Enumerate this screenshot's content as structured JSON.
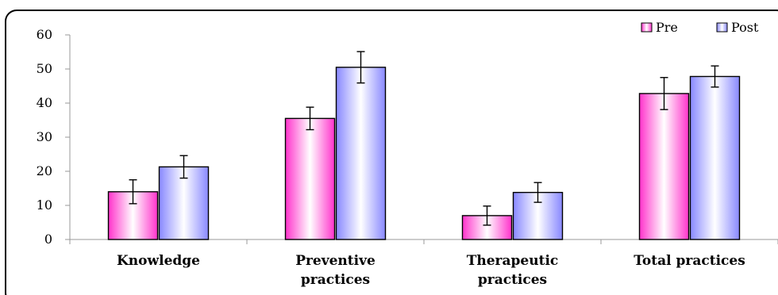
{
  "chart_data": {
    "type": "bar",
    "categories": [
      [
        "Knowledge"
      ],
      [
        "Preventive",
        "practices"
      ],
      [
        "Therapeutic",
        "practices"
      ],
      [
        "Total practices"
      ]
    ],
    "series": [
      {
        "name": "Pre",
        "values": [
          14,
          35.5,
          7,
          42.8
        ],
        "error": [
          3.5,
          3.3,
          2.8,
          4.7
        ],
        "color": "#ff33cc"
      },
      {
        "name": "Post",
        "values": [
          21.3,
          50.5,
          13.8,
          47.8
        ],
        "error": [
          3.3,
          4.6,
          2.9,
          3.1
        ],
        "color": "#8888ff"
      }
    ],
    "ylim": [
      0,
      60
    ],
    "yticks": [
      0,
      10,
      20,
      30,
      40,
      50,
      60
    ],
    "legend_position": "top-right",
    "grid": false
  }
}
